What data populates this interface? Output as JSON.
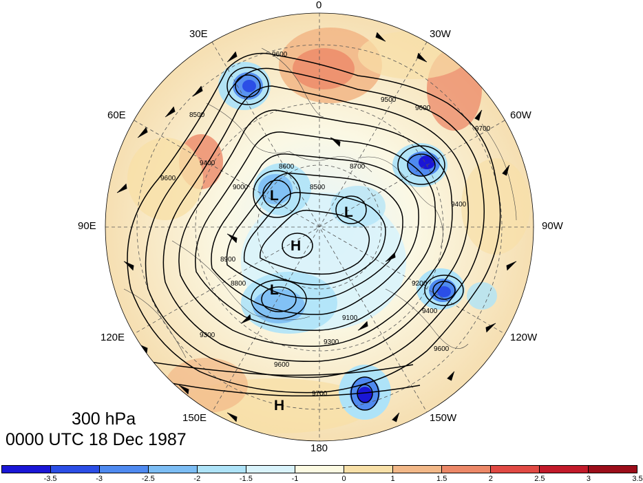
{
  "title": {
    "level": "300 hPa",
    "time": "0000 UTC 18 Dec 1987"
  },
  "longitude_labels": {
    "lon_0": "0",
    "lon_30e": "30E",
    "lon_30w": "30W",
    "lon_60e": "60E",
    "lon_60w": "60W",
    "lon_90e": "90E",
    "lon_90w": "90W",
    "lon_120e": "120E",
    "lon_120w": "120W",
    "lon_150e": "150E",
    "lon_150w": "150W",
    "lon_180": "180"
  },
  "pressure_centers": {
    "low": "L",
    "high": "H"
  },
  "contour_labels": [
    "9600",
    "9500",
    "9400",
    "9300",
    "9100",
    "9000",
    "8900",
    "8800",
    "8700",
    "8600",
    "8500",
    "9700",
    "9200"
  ],
  "colorbar": {
    "colors": [
      "#1a16d6",
      "#2b4ee6",
      "#4f8af0",
      "#7cbdf4",
      "#aee3f8",
      "#d9f3fb",
      "#fcfae2",
      "#f8e0a8",
      "#f2b888",
      "#ec8868",
      "#e14a44",
      "#c21a2a",
      "#9b0d1a"
    ],
    "ticks": [
      "-3.5",
      "-3",
      "-2.5",
      "-2",
      "-1.5",
      "-1",
      "0",
      "1",
      "1.5",
      "2",
      "2.5",
      "3",
      "3.5"
    ]
  }
}
